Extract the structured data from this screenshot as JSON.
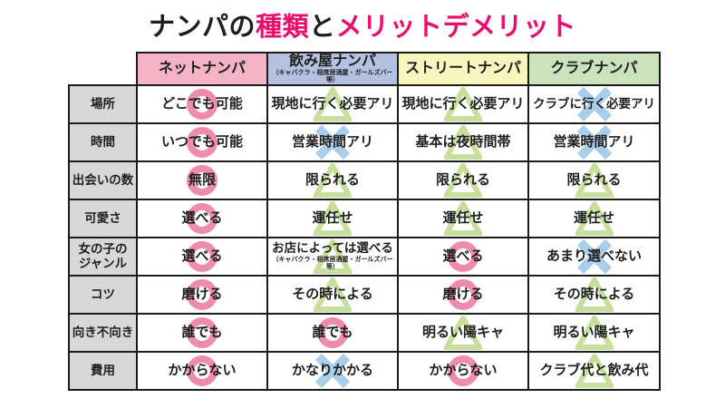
{
  "title": {
    "segments": [
      {
        "text": "ナンパの",
        "color": "#1e1e1e"
      },
      {
        "text": "種類",
        "color": "#e60f6e"
      },
      {
        "text": "と",
        "color": "#1e1e1e"
      },
      {
        "text": "メリットデメリット",
        "color": "#e60f6e"
      }
    ]
  },
  "symbols": {
    "circle": {
      "color": "#ee8cab",
      "meaning": "good"
    },
    "triangle": {
      "color": "#c6df9d",
      "meaning": "fair"
    },
    "cross": {
      "color": "#aacdea",
      "meaning": "bad"
    }
  },
  "chart_data": {
    "type": "table",
    "title": "ナンパの種類とメリットデメリット",
    "columns": [
      {
        "label": "ネットナンパ",
        "sub": "",
        "bg": "#f4b3c6"
      },
      {
        "label": "飲み屋ナンパ",
        "sub": "（キャバクラ・相席居酒屋・ガールズバー等）",
        "bg": "#b5c1e0"
      },
      {
        "label": "ストリートナンパ",
        "sub": "",
        "bg": "#f8f5bf"
      },
      {
        "label": "クラブナンパ",
        "sub": "",
        "bg": "#cbe2bd"
      }
    ],
    "rows": [
      {
        "label": "場所",
        "cells": [
          {
            "text": "どこでも可能",
            "mark": "circle"
          },
          {
            "text": "現地に行く必要アリ",
            "mark": "triangle"
          },
          {
            "text": "現地に行く必要アリ",
            "mark": "triangle"
          },
          {
            "text": "クラブに行く必要アリ",
            "mark": "cross"
          }
        ]
      },
      {
        "label": "時間",
        "cells": [
          {
            "text": "いつでも可能",
            "mark": "circle"
          },
          {
            "text": "営業時間アリ",
            "mark": "cross"
          },
          {
            "text": "基本は夜時間帯",
            "mark": "triangle"
          },
          {
            "text": "営業時間アリ",
            "mark": "cross"
          }
        ]
      },
      {
        "label": "出会いの数",
        "cells": [
          {
            "text": "無限",
            "mark": "circle"
          },
          {
            "text": "限られる",
            "mark": "triangle"
          },
          {
            "text": "限られる",
            "mark": "triangle"
          },
          {
            "text": "限られる",
            "mark": "triangle"
          }
        ]
      },
      {
        "label": "可愛さ",
        "cells": [
          {
            "text": "選べる",
            "mark": "circle"
          },
          {
            "text": "運任せ",
            "mark": "triangle"
          },
          {
            "text": "運任せ",
            "mark": "triangle"
          },
          {
            "text": "運任せ",
            "mark": "triangle"
          }
        ]
      },
      {
        "label": "女の子の\nジャンル",
        "cells": [
          {
            "text": "選べる",
            "mark": "circle"
          },
          {
            "text": "お店によっては選べる",
            "sub": "（キャバクラ・相席居酒屋・ガールズバー等）",
            "mark": "triangle"
          },
          {
            "text": "選べる",
            "mark": "circle"
          },
          {
            "text": "あまり選べない",
            "mark": "cross"
          }
        ]
      },
      {
        "label": "コツ",
        "cells": [
          {
            "text": "磨ける",
            "mark": "circle"
          },
          {
            "text": "その時による",
            "mark": "triangle"
          },
          {
            "text": "磨ける",
            "mark": "circle"
          },
          {
            "text": "その時による",
            "mark": "triangle"
          }
        ]
      },
      {
        "label": "向き不向き",
        "cells": [
          {
            "text": "誰でも",
            "mark": "circle"
          },
          {
            "text": "誰でも",
            "mark": "circle"
          },
          {
            "text": "明るい陽キャ",
            "mark": "triangle"
          },
          {
            "text": "明るい陽キャ",
            "mark": "triangle"
          }
        ]
      },
      {
        "label": "費用",
        "cells": [
          {
            "text": "かからない",
            "mark": "circle"
          },
          {
            "text": "かなりかかる",
            "mark": "cross"
          },
          {
            "text": "かからない",
            "mark": "circle"
          },
          {
            "text": "クラブ代と飲み代",
            "mark": "triangle"
          }
        ]
      }
    ]
  }
}
